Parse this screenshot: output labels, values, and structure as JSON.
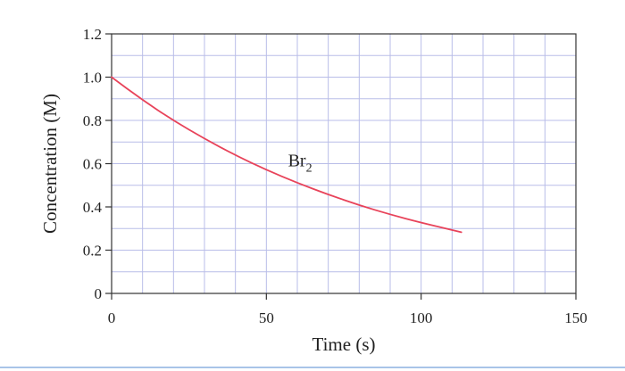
{
  "chart_data": {
    "type": "line",
    "title": "",
    "xlabel": "Time (s)",
    "ylabel": "Concentration (M)",
    "xlim": [
      0,
      150
    ],
    "ylim": [
      0,
      1.2
    ],
    "x_ticks": [
      "0",
      "50",
      "100",
      "150"
    ],
    "y_ticks": [
      "0",
      "0.2",
      "0.4",
      "0.6",
      "0.8",
      "1.0",
      "1.2"
    ],
    "grid": true,
    "series": [
      {
        "name": "",
        "color": "#e8435a",
        "x": [
          0,
          10,
          20,
          30,
          40,
          50,
          60,
          70,
          80,
          90,
          100,
          113
        ],
        "y": [
          1.0,
          0.894,
          0.799,
          0.715,
          0.639,
          0.571,
          0.511,
          0.457,
          0.408,
          0.365,
          0.327,
          0.283
        ]
      }
    ],
    "annotation": {
      "base": "Br",
      "subscript": "2",
      "x": 57,
      "y": 0.62
    },
    "colors": {
      "grid": "#b9bde8",
      "axis": "#333333",
      "line": "#e8435a",
      "bottom_border": "#a9c4e8"
    }
  }
}
